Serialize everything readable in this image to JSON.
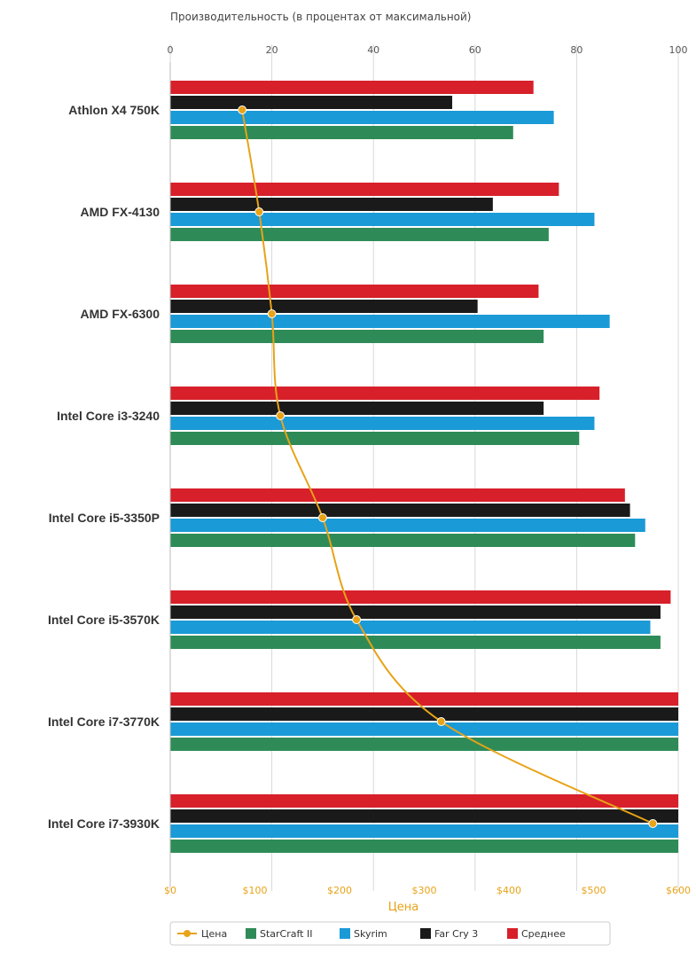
{
  "chart_data": {
    "type": "bar",
    "orientation": "horizontal",
    "top_axis": {
      "title": "Производительность (в процентах от максимальной)",
      "ticks": [
        "0",
        "20",
        "40",
        "60",
        "80",
        "100"
      ],
      "range": [
        0,
        100
      ]
    },
    "bottom_axis": {
      "title": "Цена",
      "ticks": [
        "$0",
        "$100",
        "$200",
        "$300",
        "$400",
        "$500",
        "$600"
      ],
      "range": [
        0,
        600
      ]
    },
    "grid": true,
    "categories": [
      "Athlon X4 750K",
      "AMD FX-4130",
      "AMD FX-6300",
      "Intel Core i3-3240",
      "Intel Core i5-3350P",
      "Intel Core i5-3570K",
      "Intel Core i7-3770K",
      "Intel Core i7-3930K"
    ],
    "series": [
      {
        "name": "Среднее",
        "color": "#d7202a",
        "values": [
          71.5,
          76.5,
          72.5,
          84.5,
          89.5,
          98.5,
          100,
          100
        ]
      },
      {
        "name": "Far Cry 3",
        "color": "#1a1a1a",
        "values": [
          55.5,
          63.5,
          60.5,
          73.5,
          90.5,
          96.5,
          100,
          100
        ]
      },
      {
        "name": "Skyrim",
        "color": "#1a9ad6",
        "values": [
          75.5,
          83.5,
          86.5,
          83.5,
          93.5,
          94.5,
          100,
          100
        ]
      },
      {
        "name": "StarCraft II",
        "color": "#2e8b57",
        "values": [
          67.5,
          74.5,
          73.5,
          80.5,
          91.5,
          96.5,
          100,
          100
        ]
      }
    ],
    "price_series": {
      "name": "Цена",
      "color": "#e8a317",
      "values": [
        85,
        105,
        120,
        130,
        180,
        220,
        320,
        570
      ]
    },
    "legend": {
      "placement": "bottom",
      "items": [
        {
          "label": "Цена",
          "color": "#e8a317",
          "icon": "line-with-dot-icon"
        },
        {
          "label": "StarCraft II",
          "color": "#2e8b57",
          "icon": "square-icon"
        },
        {
          "label": "Skyrim",
          "color": "#1a9ad6",
          "icon": "square-icon"
        },
        {
          "label": "Far Cry 3",
          "color": "#1a1a1a",
          "icon": "square-icon"
        },
        {
          "label": "Среднее",
          "color": "#d7202a",
          "icon": "square-icon"
        }
      ]
    }
  }
}
